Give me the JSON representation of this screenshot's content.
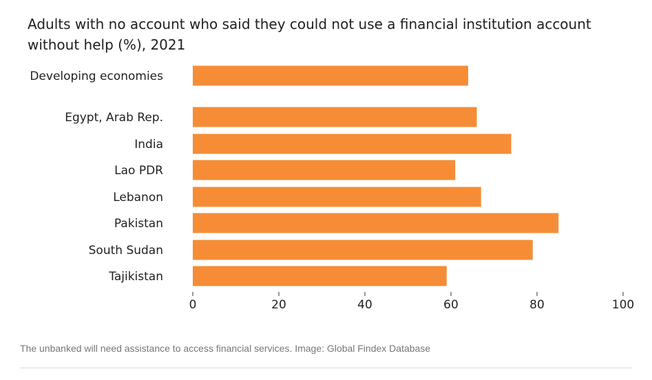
{
  "chart_data": {
    "type": "bar",
    "orientation": "horizontal",
    "title": "Adults with no account who said they could not use a financial institution account without help (%), 2021",
    "categories": [
      "Developing economies",
      "Egypt, Arab Rep.",
      "India",
      "Lao PDR",
      "Lebanon",
      "Pakistan",
      "South Sudan",
      "Tajikistan"
    ],
    "values": [
      64,
      66,
      74,
      61,
      67,
      85,
      79,
      59
    ],
    "xlim": [
      0,
      100
    ],
    "xticks": [
      "0",
      "20",
      "40",
      "60",
      "80",
      "100"
    ],
    "xlabel": "",
    "ylabel": "",
    "grid": false,
    "bar_color": "#F68D36"
  },
  "caption": {
    "text": "The unbanked will need assistance to access financial services. Image: Global Findex Database"
  }
}
